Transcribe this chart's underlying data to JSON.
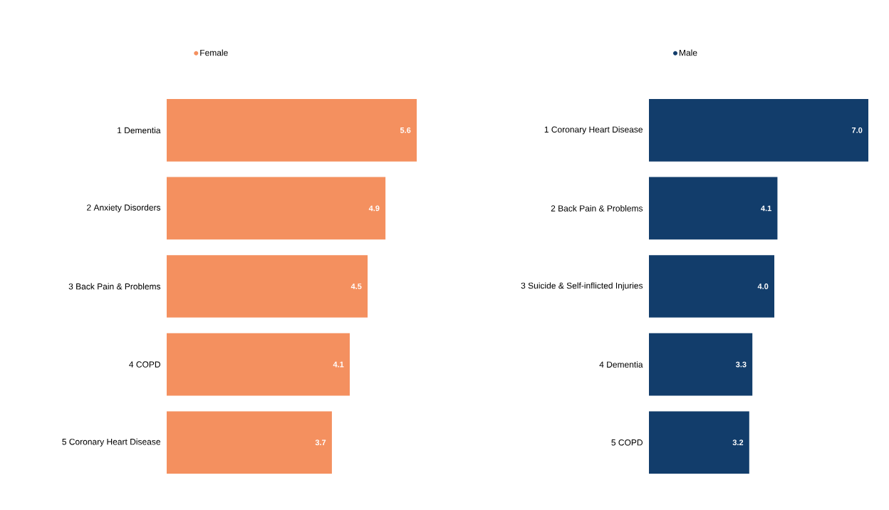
{
  "chart_data": [
    {
      "type": "bar",
      "orientation": "horizontal",
      "categories": [
        "1 Dementia",
        "2 Anxiety Disorders",
        "3 Back Pain & Problems",
        "4 COPD",
        "5 Coronary Heart Disease"
      ],
      "xlim": [
        0,
        5.6
      ],
      "series": [
        {
          "name": "Female",
          "color": "#f4905f",
          "values": [
            5.6,
            4.9,
            4.5,
            4.1,
            3.7
          ],
          "value_labels": [
            "5.6",
            "4.9",
            "4.5",
            "4.1",
            "3.7"
          ]
        }
      ],
      "legend": "top"
    },
    {
      "type": "bar",
      "orientation": "horizontal",
      "categories": [
        "1 Coronary Heart Disease",
        "2 Back Pain & Problems",
        "3 Suicide & Self-inflicted Injuries",
        "4 Dementia",
        "5 COPD"
      ],
      "xlim": [
        0,
        7.0
      ],
      "series": [
        {
          "name": "Male",
          "color": "#123d6b",
          "values": [
            7.0,
            4.1,
            4.0,
            3.3,
            3.2
          ],
          "value_labels": [
            "7.0",
            "4.1",
            "4.0",
            "3.3",
            "3.2"
          ]
        }
      ],
      "legend": "top"
    }
  ]
}
